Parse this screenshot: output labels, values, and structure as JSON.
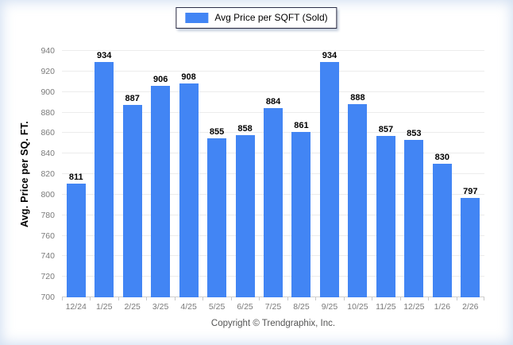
{
  "legend": {
    "label": "Avg Price per SQFT (Sold)",
    "swatch_color": "#4285f4"
  },
  "y_axis": {
    "title": "Avg. Price per SQ. FT.",
    "min": 700,
    "max": 940,
    "step": 20
  },
  "footer": {
    "text": "Copyright © Trendgraphix, Inc."
  },
  "chart_data": {
    "type": "bar",
    "title": "Avg Price per SQFT (Sold)",
    "categories": [
      "12/24",
      "1/25",
      "2/25",
      "3/25",
      "4/25",
      "5/25",
      "6/25",
      "7/25",
      "8/25",
      "9/25",
      "10/25",
      "11/25",
      "12/25",
      "1/26",
      "2/26"
    ],
    "values": [
      811,
      934,
      887,
      906,
      908,
      855,
      858,
      884,
      861,
      934,
      888,
      857,
      853,
      830,
      797
    ],
    "xlabel": "",
    "ylabel": "Avg. Price per SQ. FT.",
    "ylim": [
      700,
      940
    ],
    "ytick_step": 20,
    "bar_color": "#4285f4",
    "grid": true,
    "gridline_color": "#ececec",
    "axis_line_color": "#cfcfcf",
    "value_labels": true,
    "legend_position": "top-center"
  }
}
